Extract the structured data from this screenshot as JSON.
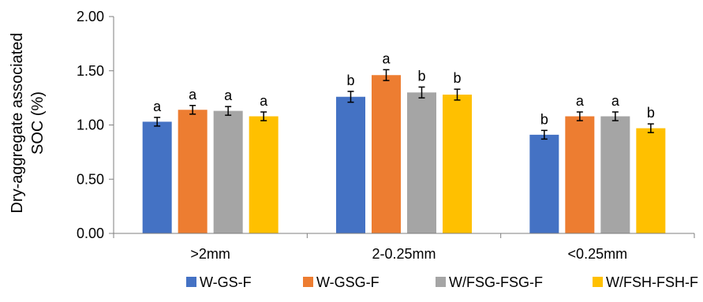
{
  "chart_data": {
    "type": "bar",
    "title": "",
    "xlabel": "",
    "ylabel_lines": [
      "Dry-aggregate associated",
      "SOC (%)"
    ],
    "ylim": [
      0,
      2
    ],
    "yticks": [
      "0.00",
      "0.50",
      "1.00",
      "1.50",
      "2.00"
    ],
    "ytick_values": [
      0,
      0.5,
      1.0,
      1.5,
      2.0
    ],
    "grid": false,
    "legend_position": "bottom",
    "categories": [
      ">2mm",
      "2-0.25mm",
      "<0.25mm"
    ],
    "series": [
      {
        "name": "W-GS-F",
        "color": "#4472C4",
        "values": [
          1.03,
          1.26,
          0.91
        ],
        "errors": [
          0.04,
          0.05,
          0.04
        ],
        "letters": [
          "a",
          "b",
          "b"
        ]
      },
      {
        "name": "W-GSG-F",
        "color": "#ED7D31",
        "values": [
          1.14,
          1.46,
          1.08
        ],
        "errors": [
          0.04,
          0.05,
          0.04
        ],
        "letters": [
          "a",
          "a",
          "a"
        ]
      },
      {
        "name": "W/FSG-FSG-F",
        "color": "#A5A5A5",
        "values": [
          1.13,
          1.3,
          1.08
        ],
        "errors": [
          0.04,
          0.05,
          0.04
        ],
        "letters": [
          "a",
          "b",
          "a"
        ]
      },
      {
        "name": "W/FSH-FSH-F",
        "color": "#FFC000",
        "values": [
          1.08,
          1.28,
          0.97
        ],
        "errors": [
          0.04,
          0.05,
          0.04
        ],
        "letters": [
          "a",
          "b",
          "b"
        ]
      }
    ]
  }
}
